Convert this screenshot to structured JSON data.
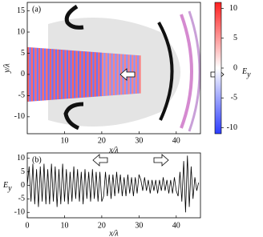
{
  "chart_data": [
    {
      "type": "fieldmap",
      "panel_label": "(a)",
      "xlabel": "x/λ",
      "ylabel": "y/λ",
      "xlim": [
        0,
        46.5
      ],
      "ylim": [
        -14,
        17
      ],
      "xticks": [
        10,
        20,
        30,
        40
      ],
      "yticks": [
        -10,
        -5,
        0,
        5,
        10,
        15
      ],
      "colorbar_label": [
        "E",
        "y"
      ],
      "clim": [
        -11,
        11
      ],
      "cticks": [
        -10,
        -5,
        0,
        5,
        10
      ],
      "x": [
        0,
        0.5,
        1,
        1.5,
        2,
        2.5,
        3,
        3.5,
        4,
        4.5,
        5,
        5.5,
        6,
        6.5,
        7,
        7.5,
        8,
        8.5,
        9,
        9.5,
        10,
        10.5,
        11,
        11.5,
        12,
        12.5,
        13,
        13.5,
        14,
        14.5,
        15,
        15.5,
        16,
        16.5,
        17,
        17.5,
        18,
        18.5,
        19,
        19.5,
        20,
        20.5,
        21,
        21.5,
        22,
        22.5,
        23,
        23.5,
        24,
        24.5,
        25,
        25.5,
        26,
        26.5,
        27,
        27.5,
        28,
        28.5,
        29,
        29.5,
        30
      ],
      "values": [
        9,
        -9,
        9,
        -9,
        9,
        -9,
        9,
        -9,
        9,
        -9,
        9,
        -9,
        9,
        -9,
        9,
        -9,
        9,
        -9,
        9,
        -9,
        9,
        -9,
        9,
        -9,
        9,
        -9,
        9,
        -9,
        9,
        -9,
        9,
        -9,
        9,
        -9,
        9,
        -9,
        9,
        -9,
        9,
        -9,
        7,
        -7,
        7,
        -7,
        7,
        -7,
        7,
        -7,
        7,
        -7,
        7,
        -7,
        7,
        -7,
        7,
        -7,
        7,
        -7,
        7,
        -7,
        7
      ]
    },
    {
      "type": "line",
      "panel_label": "(b)",
      "xlabel": "x/λ",
      "ylabel": [
        "E",
        "y"
      ],
      "xlim": [
        0,
        46.5
      ],
      "ylim": [
        -12,
        12
      ],
      "xticks": [
        0,
        10,
        20,
        30,
        40
      ],
      "yticks": [
        -10,
        -5,
        0,
        5,
        10
      ],
      "color": "#000000",
      "x": [
        0,
        0.5,
        1,
        1.5,
        2,
        2.5,
        3,
        3.5,
        4,
        4.5,
        5,
        5.5,
        6,
        6.5,
        7,
        7.5,
        8,
        8.5,
        9,
        9.5,
        10,
        10.5,
        11,
        11.5,
        12,
        12.5,
        13,
        13.5,
        14,
        14.5,
        15,
        15.5,
        16,
        16.5,
        17,
        17.5,
        18,
        18.5,
        19,
        19.5,
        20,
        20.5,
        21,
        21.5,
        22,
        22.5,
        23,
        23.5,
        24,
        24.5,
        25,
        25.5,
        26,
        26.5,
        27,
        27.5,
        28,
        28.5,
        29,
        29.5,
        30,
        30.5,
        31,
        31.5,
        32,
        32.5,
        33,
        33.5,
        34,
        34.5,
        35,
        35.5,
        36,
        36.5,
        37,
        37.5,
        38,
        38.5,
        39,
        39.5,
        40,
        40.5,
        41,
        41.5,
        42,
        42.5,
        43,
        43.5,
        44,
        44.5,
        45,
        45.5,
        46
      ],
      "values": [
        0,
        7,
        -6,
        8,
        -7,
        6,
        -8,
        7,
        -6,
        8,
        -7,
        6,
        -7,
        8,
        -6,
        7,
        -8,
        6,
        -7,
        8,
        -6,
        6,
        -7,
        5,
        -6,
        7,
        -5,
        6,
        -6,
        5,
        -7,
        6,
        -5,
        5,
        -6,
        6,
        -5,
        5,
        -6,
        5,
        -6,
        -4,
        5,
        -4,
        4,
        -5,
        4,
        -4,
        5,
        -3,
        4,
        -4,
        3,
        -4,
        4,
        -3,
        3,
        -4,
        3,
        -3,
        4,
        2,
        -2,
        3,
        -2,
        2,
        -3,
        2,
        -2,
        2,
        -3,
        2,
        -2,
        3,
        -2,
        2,
        -3,
        2,
        -3,
        3,
        -2,
        -4,
        5,
        -6,
        9,
        -10,
        11,
        -8,
        7,
        -5,
        3,
        -2,
        1
      ]
    }
  ]
}
